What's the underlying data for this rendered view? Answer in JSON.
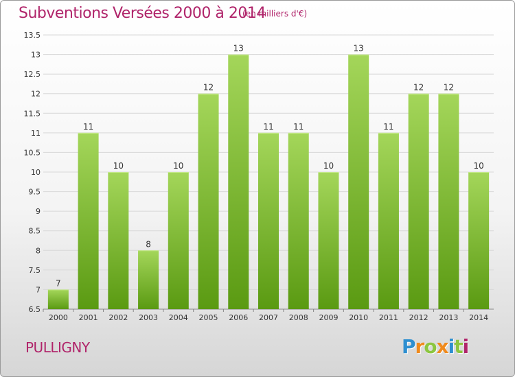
{
  "title": "Subventions Versées 2000 à 2014",
  "subtitle": "(en milliers d'€)",
  "commune": "PULLIGNY",
  "logo": {
    "letters": [
      "P",
      "r",
      "o",
      "x",
      "i",
      "t",
      "i"
    ],
    "colors": [
      "#2e8fd0",
      "#f08a1c",
      "#8cc63f",
      "#f08a1c",
      "#2e8fd0",
      "#8cc63f",
      "#b0246a"
    ]
  },
  "colors": {
    "bar_top": "#a4d65a",
    "bar_bottom": "#5a9a12",
    "title": "#b0246a"
  },
  "chart_data": {
    "type": "bar",
    "categories": [
      "2000",
      "2001",
      "2002",
      "2003",
      "2004",
      "2005",
      "2006",
      "2007",
      "2008",
      "2009",
      "2010",
      "2011",
      "2012",
      "2013",
      "2014"
    ],
    "values": [
      7,
      11,
      10,
      8,
      10,
      12,
      13,
      11,
      11,
      10,
      13,
      11,
      12,
      12,
      10
    ],
    "title": "Subventions Versées 2000 à 2014",
    "xlabel": "",
    "ylabel": "",
    "ylim": [
      6.5,
      13.5
    ],
    "yticks": [
      "6.5",
      "7",
      "7.5",
      "8",
      "8.5",
      "9",
      "9.5",
      "10",
      "10.5",
      "11",
      "11.5",
      "12",
      "12.5",
      "13",
      "13.5"
    ],
    "grid": true,
    "legend": "none"
  }
}
